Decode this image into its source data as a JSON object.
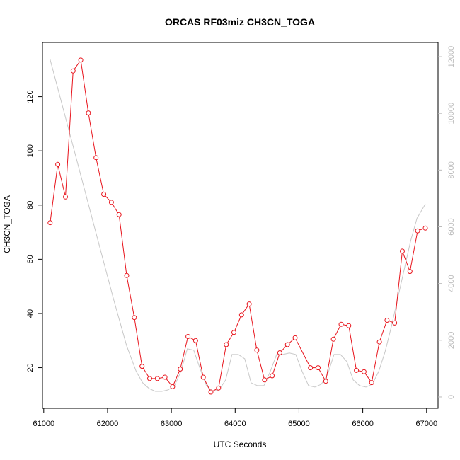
{
  "chart_data": {
    "type": "line",
    "title": "ORCAS RF03miz CH3CN_TOGA",
    "xlabel": "UTC Seconds",
    "ylabel": "CH3CN_TOGA",
    "xlim": [
      60980,
      67180
    ],
    "ylim": [
      5,
      140
    ],
    "y2lim": [
      -400,
      12500
    ],
    "x_ticks": [
      61000,
      62000,
      63000,
      64000,
      65000,
      66000,
      67000
    ],
    "y_ticks": [
      20,
      40,
      60,
      80,
      100,
      120
    ],
    "y2_ticks": [
      0,
      2000,
      4000,
      6000,
      8000,
      10000,
      12000
    ],
    "grid": false,
    "legend": "none",
    "series": [
      {
        "color": "#e8141c",
        "marker": "circle",
        "axis": "left",
        "x": [
          61100,
          61220,
          61340,
          61460,
          61580,
          61700,
          61820,
          61940,
          62060,
          62180,
          62300,
          62420,
          62540,
          62660,
          62780,
          62900,
          63020,
          63140,
          63260,
          63380,
          63500,
          63620,
          63740,
          63860,
          63980,
          64100,
          64220,
          64340,
          64460,
          64580,
          64700,
          64820,
          64940,
          65180,
          65300,
          65420,
          65540,
          65660,
          65780,
          65900,
          66020,
          66140,
          66260,
          66380,
          66500,
          66620,
          66740,
          66860,
          66980
        ],
        "y": [
          73.5,
          95,
          83,
          129.5,
          133.5,
          114,
          97.5,
          84,
          81,
          76.5,
          54,
          38.5,
          20.5,
          16,
          16,
          16.5,
          13,
          19.5,
          31.5,
          30,
          16.5,
          11,
          12.5,
          28.5,
          33,
          39.5,
          43.5,
          26.5,
          15.5,
          17,
          25.5,
          28.5,
          31,
          20,
          20,
          15,
          30.5,
          36,
          35.5,
          19,
          18.5,
          14.5,
          29.5,
          37.5,
          36.5,
          63,
          55.5,
          70.5,
          71.5
        ]
      },
      {
        "color": "#c8c8c8",
        "marker": "none",
        "axis": "right",
        "x": [
          61100,
          61300,
          61500,
          61700,
          61900,
          62100,
          62300,
          62450,
          62550,
          62650,
          62750,
          62850,
          62950,
          63050,
          63150,
          63250,
          63350,
          63450,
          63550,
          63650,
          63750,
          63850,
          63950,
          64050,
          64150,
          64250,
          64350,
          64450,
          64550,
          64650,
          64750,
          64850,
          64950,
          65050,
          65150,
          65250,
          65350,
          65450,
          65550,
          65650,
          65750,
          65850,
          65950,
          66050,
          66150,
          66250,
          66350,
          66450,
          66550,
          66650,
          66750,
          66850,
          66980
        ],
        "y": [
          11900,
          10200,
          8500,
          6800,
          5100,
          3400,
          1800,
          900,
          500,
          300,
          200,
          200,
          250,
          400,
          900,
          1700,
          1650,
          1000,
          400,
          200,
          250,
          600,
          1500,
          1500,
          1350,
          500,
          400,
          400,
          900,
          1500,
          1500,
          1550,
          1500,
          900,
          400,
          350,
          450,
          800,
          1500,
          1500,
          1250,
          600,
          400,
          350,
          450,
          900,
          1600,
          2500,
          3500,
          4500,
          5500,
          6300,
          6800
        ]
      }
    ]
  }
}
